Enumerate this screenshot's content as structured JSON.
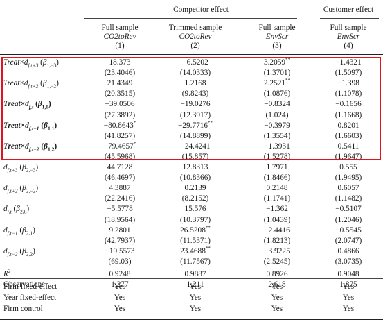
{
  "header": {
    "competitor_label": "Competitor effect",
    "customer_label": "Customer effect",
    "columns": [
      {
        "line1": "Full sample",
        "line2": "CO2toRev",
        "num": "(1)"
      },
      {
        "line1": "Trimmed sample",
        "line2": "CO2toRev",
        "num": "(2)"
      },
      {
        "line1": "Full sample",
        "line2": "EnvScr",
        "num": "(3)"
      },
      {
        "line1": "Full sample",
        "line2": "EnvScr",
        "num": "(4)"
      }
    ]
  },
  "rows": [
    {
      "label": "Treat×d_{f,t+3} (β_{1,−3})",
      "vals": [
        "18.373",
        "−6.5202",
        "3.2059**",
        "−1.4321"
      ],
      "bold": false
    },
    {
      "label": "",
      "vals": [
        "(23.4046)",
        "(14.0333)",
        "(1.3701)",
        "(1.5097)"
      ],
      "bold": false
    },
    {
      "label": "Treat×d_{f,t+2} (β_{1,−2})",
      "vals": [
        "21.4349",
        "1.2168",
        "2.2521**",
        "−1.398"
      ],
      "bold": false
    },
    {
      "label": "",
      "vals": [
        "(20.3515)",
        "(9.8243)",
        "(1.0876)",
        "(1.1078)"
      ],
      "bold": false
    },
    {
      "label": "Treat×d_{f,t} (β_{1,0})",
      "vals": [
        "−39.0506",
        "−19.0276",
        "−0.8324",
        "−0.1656"
      ],
      "bold": true
    },
    {
      "label": "",
      "vals": [
        "(27.3892)",
        "(12.3917)",
        "(1.024)",
        "(1.1668)"
      ],
      "bold": false
    },
    {
      "label": "Treat×d_{f,t−1} (β_{1,1})",
      "vals": [
        "−80.8643*",
        "−29.7716**",
        "−0.3979",
        "0.8201"
      ],
      "bold": true
    },
    {
      "label": "",
      "vals": [
        "(41.8257)",
        "(14.8899)",
        "(1.3554)",
        "(1.6603)"
      ],
      "bold": false
    },
    {
      "label": "Treat×d_{f,t−2} (β_{1,2})",
      "vals": [
        "−79.4657*",
        "−24.4241",
        "−1.3931",
        "0.5411"
      ],
      "bold": true
    },
    {
      "label": "",
      "vals": [
        "(45.5968)",
        "(15.857)",
        "(1.5278)",
        "(1.9647)"
      ],
      "bold": false
    },
    {
      "label": "d_{f,t+3} (β_{2,−3})",
      "vals": [
        "44.7128",
        "12.8313",
        "1.7971",
        "0.555"
      ],
      "bold": false
    },
    {
      "label": "",
      "vals": [
        "(46.4697)",
        "(10.8366)",
        "(1.8466)",
        "(1.9495)"
      ],
      "bold": false
    },
    {
      "label": "d_{f,t+2} (β_{2,−2})",
      "vals": [
        "4.3887",
        "0.2139",
        "0.2148",
        "0.6057"
      ],
      "bold": false
    },
    {
      "label": "",
      "vals": [
        "(22.2416)",
        "(8.2152)",
        "(1.1741)",
        "(1.1482)"
      ],
      "bold": false
    },
    {
      "label": "d_{f,t} (β_{2,0})",
      "vals": [
        "−5.5778",
        "15.576",
        "−1.362",
        "−0.5107"
      ],
      "bold": false
    },
    {
      "label": "",
      "vals": [
        "(18.9564)",
        "(10.3797)",
        "(1.0439)",
        "(1.2046)"
      ],
      "bold": false
    },
    {
      "label": "d_{f,t−1} (β_{2,1})",
      "vals": [
        "9.2801",
        "26.5208**",
        "−2.4416",
        "−0.5545"
      ],
      "bold": false
    },
    {
      "label": "",
      "vals": [
        "(42.7937)",
        "(11.5371)",
        "(1.8213)",
        "(2.0747)"
      ],
      "bold": false
    },
    {
      "label": "d_{f,t−2} (β_{2,2})",
      "vals": [
        "−19.5573",
        "23.4688**",
        "−3.9225",
        "0.4866"
      ],
      "bold": false
    },
    {
      "label": "",
      "vals": [
        "(69.03)",
        "(11.7567)",
        "(2.5245)",
        "(3.0735)"
      ],
      "bold": false
    },
    {
      "label": "R2",
      "vals": [
        "0.9248",
        "0.9887",
        "0.8926",
        "0.9048"
      ],
      "bold": false
    },
    {
      "label": "Observations",
      "vals": [
        "1,277",
        "1,211",
        "2,618",
        "1,875"
      ],
      "bold": false
    }
  ],
  "footer": [
    {
      "label": "Firm fixed-effect",
      "vals": [
        "Yes",
        "Yes",
        "Yes",
        "Yes"
      ]
    },
    {
      "label": "Year fixed-effect",
      "vals": [
        "Yes",
        "Yes",
        "Yes",
        "Yes"
      ]
    },
    {
      "label": "Firm control",
      "vals": [
        "Yes",
        "Yes",
        "Yes",
        "Yes"
      ]
    }
  ],
  "highlight_color": "#e0141c"
}
